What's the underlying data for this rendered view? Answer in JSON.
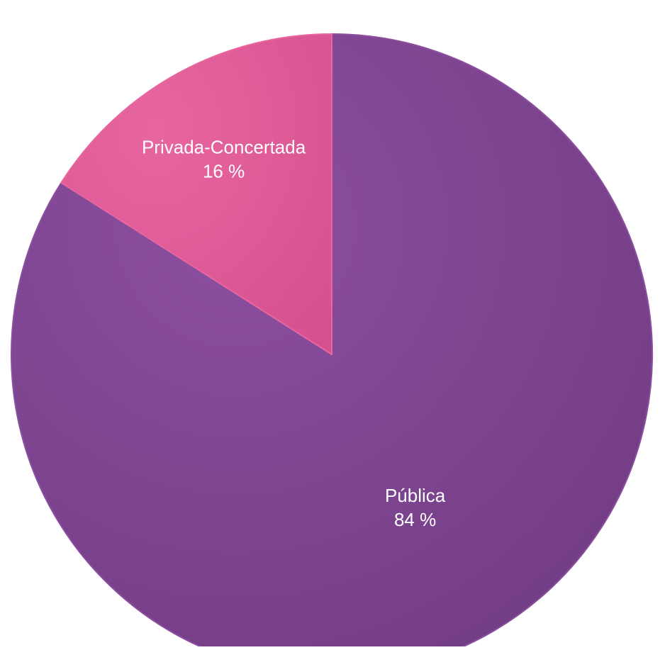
{
  "chart_data": {
    "type": "pie",
    "categories": [
      "Pública",
      "Privada-Concertada"
    ],
    "values": [
      84,
      16
    ],
    "value_labels": [
      "84 %",
      "16 %"
    ],
    "colors": [
      "#6f3a80",
      "#d4508f"
    ],
    "highlight_colors": [
      "#8c4fa0",
      "#e8669f"
    ],
    "title": "",
    "legend": "none"
  }
}
